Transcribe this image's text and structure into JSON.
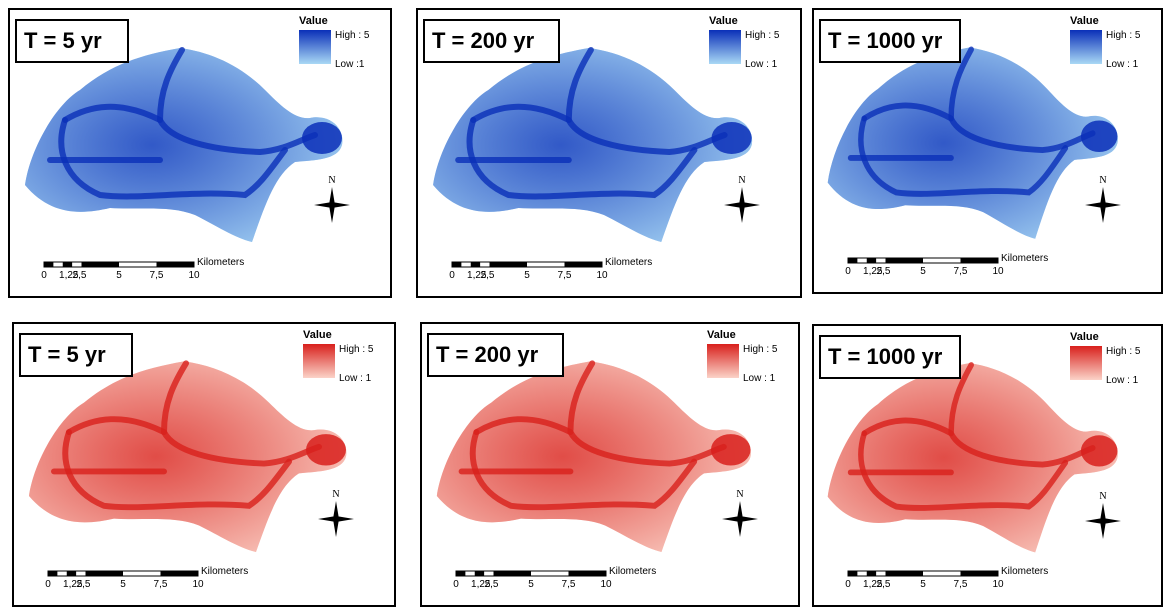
{
  "panels": [
    {
      "title": "T = 5 yr",
      "legend": {
        "title": "Value",
        "high": "High : 5",
        "low": "Low :1"
      },
      "scale": {
        "labels": [
          "0",
          "1,25",
          "2,5",
          "5",
          "7,5",
          "10"
        ],
        "unit": "Kilometers"
      },
      "north": "N",
      "color": "#0a2fb8",
      "light": "#a9d8f5"
    },
    {
      "title": "T = 200 yr",
      "legend": {
        "title": "Value",
        "high": "High : 5",
        "low": "Low : 1"
      },
      "scale": {
        "labels": [
          "0",
          "1,25",
          "2,5",
          "5",
          "7,5",
          "10"
        ],
        "unit": "Kilometers"
      },
      "north": "N",
      "color": "#0a2fb8",
      "light": "#a9d8f5"
    },
    {
      "title": "T = 1000 yr",
      "legend": {
        "title": "Value",
        "high": "High : 5",
        "low": "Low : 1"
      },
      "scale": {
        "labels": [
          "0",
          "1,25",
          "2,5",
          "5",
          "7,5",
          "10"
        ],
        "unit": "Kilometers"
      },
      "north": "N",
      "color": "#0a2fb8",
      "light": "#a9d8f5"
    },
    {
      "title": "T = 5 yr",
      "legend": {
        "title": "Value",
        "high": "High : 5",
        "low": "Low : 1"
      },
      "scale": {
        "labels": [
          "0",
          "1,25",
          "2,5",
          "5",
          "7,5",
          "10"
        ],
        "unit": "Kilometers"
      },
      "north": "N",
      "color": "#d8201c",
      "light": "#fbd3c8"
    },
    {
      "title": "T = 200 yr",
      "legend": {
        "title": "Value",
        "high": "High : 5",
        "low": "Low : 1"
      },
      "scale": {
        "labels": [
          "0",
          "1,25",
          "2,5",
          "5",
          "7,5",
          "10"
        ],
        "unit": "Kilometers"
      },
      "north": "N",
      "color": "#d8201c",
      "light": "#fbd3c8"
    },
    {
      "title": "T = 1000 yr",
      "legend": {
        "title": "Value",
        "high": "High : 5",
        "low": "Low : 1"
      },
      "scale": {
        "labels": [
          "0",
          "1,25",
          "2,5",
          "5",
          "7,5",
          "10"
        ],
        "unit": "Kilometers"
      },
      "north": "N",
      "color": "#d8201c",
      "light": "#fbd3c8"
    }
  ]
}
